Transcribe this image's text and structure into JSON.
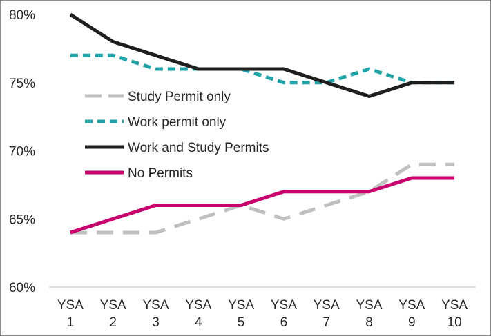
{
  "chart_data": {
    "type": "line",
    "title": "",
    "xlabel": "",
    "ylabel": "",
    "categories": [
      [
        "YSA",
        "1"
      ],
      [
        "YSA",
        "2"
      ],
      [
        "YSA",
        "3"
      ],
      [
        "YSA",
        "4"
      ],
      [
        "YSA",
        "5"
      ],
      [
        "YSA",
        "6"
      ],
      [
        "YSA",
        "7"
      ],
      [
        "YSA",
        "8"
      ],
      [
        "YSA",
        "9"
      ],
      [
        "YSA",
        "10"
      ]
    ],
    "ylim": [
      60,
      80
    ],
    "yticks": [
      60,
      65,
      70,
      75,
      80
    ],
    "ytick_labels": [
      "60%",
      "65%",
      "70%",
      "75%",
      "80%"
    ],
    "grid": false,
    "legend_position": "inside-left",
    "series": [
      {
        "name": "Study Permit only",
        "color": "#bfbfbf",
        "dash": "long-dash",
        "values": [
          64,
          64,
          64,
          65,
          66,
          65,
          66,
          67,
          69,
          69
        ]
      },
      {
        "name": "Work permit only",
        "color": "#1fa3a6",
        "dash": "dash",
        "values": [
          77,
          77,
          76,
          76,
          76,
          75,
          75,
          76,
          75,
          75
        ]
      },
      {
        "name": "Work and Study Permits",
        "color": "#1f1f1f",
        "dash": "solid",
        "values": [
          80,
          78,
          77,
          76,
          76,
          76,
          75,
          74,
          75,
          75
        ]
      },
      {
        "name": "No Permits",
        "color": "#c8006e",
        "dash": "solid",
        "values": [
          64,
          65,
          66,
          66,
          66,
          67,
          67,
          67,
          68,
          68
        ]
      }
    ]
  }
}
